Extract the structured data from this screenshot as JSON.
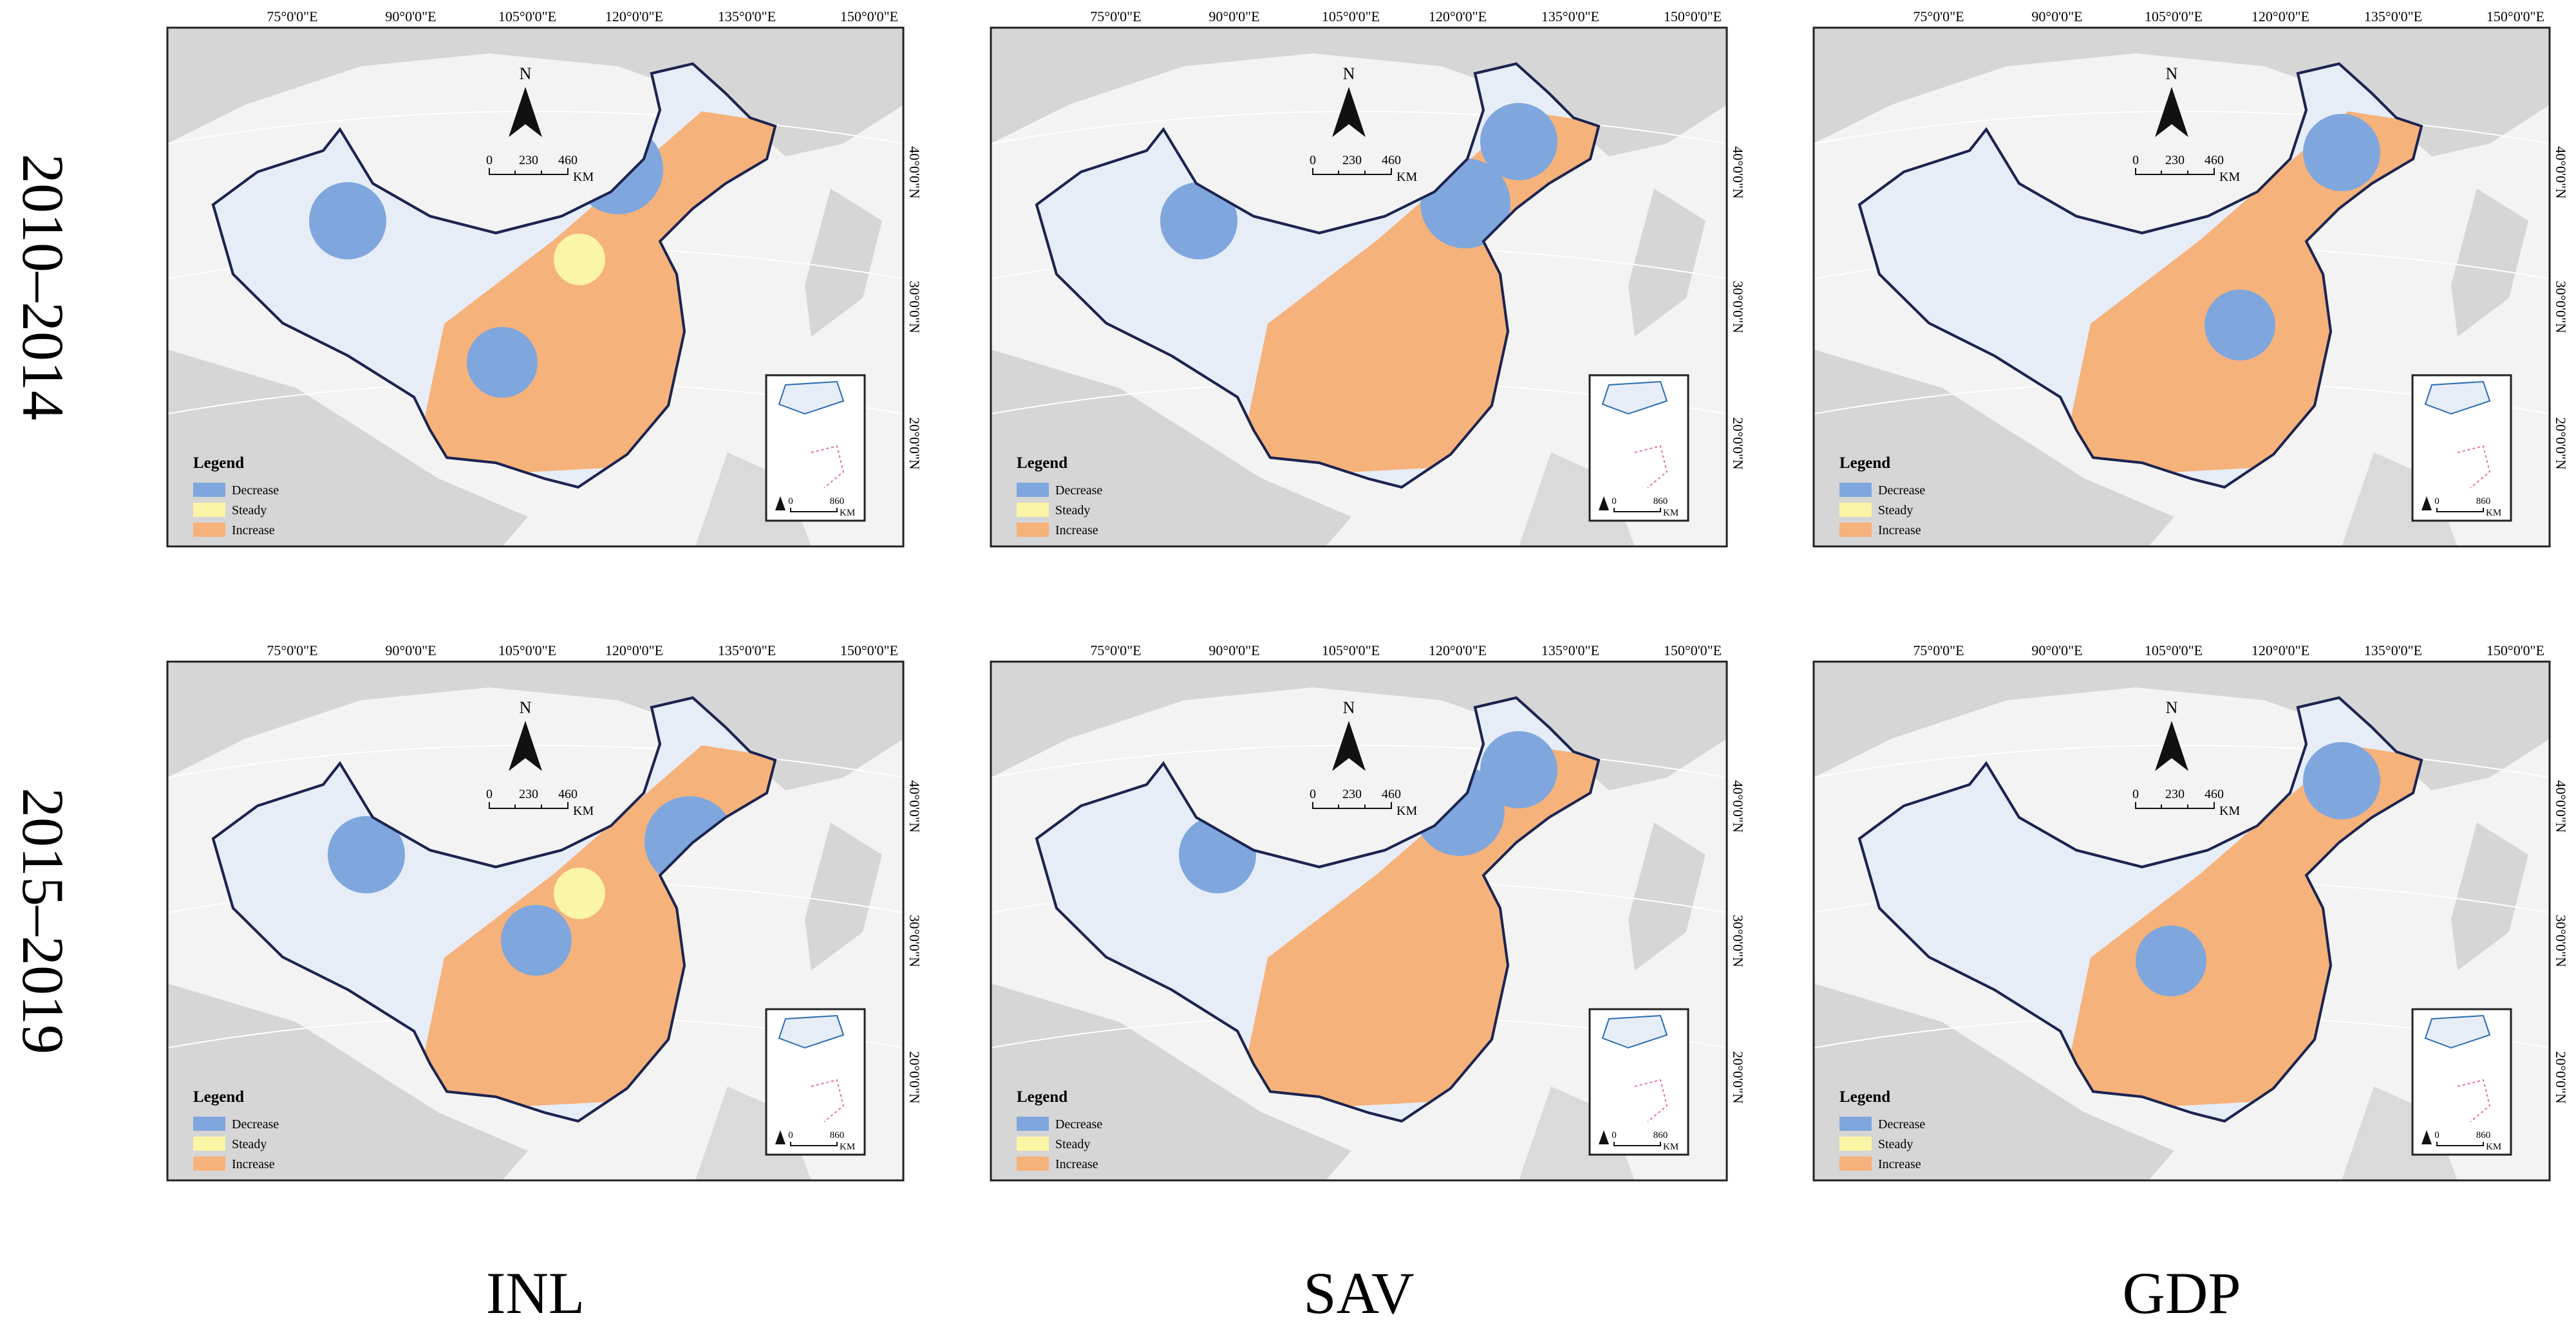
{
  "row_labels": [
    "2010–2014",
    "2015–2019"
  ],
  "column_labels": [
    "INL",
    "SAV",
    "GDP"
  ],
  "map": {
    "longitude_labels": [
      "75°0'0\"E",
      "90°0'0\"E",
      "105°0'0\"E",
      "120°0'0\"E",
      "135°0'0\"E",
      "150°0'0\"E"
    ],
    "latitude_labels": [
      "40°0'0\"N",
      "30°0'0\"N",
      "20°0'0\"N"
    ],
    "north": "N",
    "scale_labels": [
      "0",
      "230",
      "460"
    ],
    "scale_unit": "KM",
    "legend": {
      "title": "Legend",
      "items": [
        {
          "label": "Decrease",
          "color": "#7fa7dd"
        },
        {
          "label": "Steady",
          "color": "#fbf5a6"
        },
        {
          "label": "Increase",
          "color": "#f6b27b"
        }
      ]
    },
    "inset_scale_labels": [
      "0",
      "860"
    ],
    "inset_unit": "KM"
  }
}
